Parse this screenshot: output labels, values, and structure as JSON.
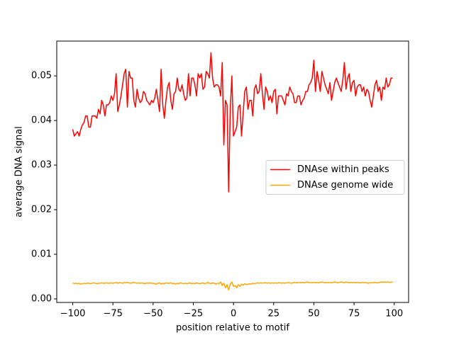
{
  "chart_data": {
    "type": "line",
    "xlabel": "position relative to motif",
    "ylabel": "average DNA signal",
    "x": [
      -100,
      -99,
      -98,
      -97,
      -96,
      -95,
      -94,
      -93,
      -92,
      -91,
      -90,
      -89,
      -88,
      -87,
      -86,
      -85,
      -84,
      -83,
      -82,
      -81,
      -80,
      -79,
      -78,
      -77,
      -76,
      -75,
      -74,
      -73,
      -72,
      -71,
      -70,
      -69,
      -68,
      -67,
      -66,
      -65,
      -64,
      -63,
      -62,
      -61,
      -60,
      -59,
      -58,
      -57,
      -56,
      -55,
      -54,
      -53,
      -52,
      -51,
      -50,
      -49,
      -48,
      -47,
      -46,
      -45,
      -44,
      -43,
      -42,
      -41,
      -40,
      -39,
      -38,
      -37,
      -36,
      -35,
      -34,
      -33,
      -32,
      -31,
      -30,
      -29,
      -28,
      -27,
      -26,
      -25,
      -24,
      -23,
      -22,
      -21,
      -20,
      -19,
      -18,
      -17,
      -16,
      -15,
      -14,
      -13,
      -12,
      -11,
      -10,
      -9,
      -8,
      -7,
      -6,
      -5,
      -4,
      -3,
      -2,
      -1,
      0,
      1,
      2,
      3,
      4,
      5,
      6,
      7,
      8,
      9,
      10,
      11,
      12,
      13,
      14,
      15,
      16,
      17,
      18,
      19,
      20,
      21,
      22,
      23,
      24,
      25,
      26,
      27,
      28,
      29,
      30,
      31,
      32,
      33,
      34,
      35,
      36,
      37,
      38,
      39,
      40,
      41,
      42,
      43,
      44,
      45,
      46,
      47,
      48,
      49,
      50,
      51,
      52,
      53,
      54,
      55,
      56,
      57,
      58,
      59,
      60,
      61,
      62,
      63,
      64,
      65,
      66,
      67,
      68,
      69,
      70,
      71,
      72,
      73,
      74,
      75,
      76,
      77,
      78,
      79,
      80,
      81,
      82,
      83,
      84,
      85,
      86,
      87,
      88,
      89,
      90,
      91,
      92,
      93,
      94,
      95,
      96,
      97,
      98,
      99
    ],
    "series": [
      {
        "name": "DNAse within peaks",
        "color": "#ff0000",
        "values": [
          0.038,
          0.0365,
          0.037,
          0.0375,
          0.0365,
          0.038,
          0.039,
          0.0395,
          0.041,
          0.041,
          0.0385,
          0.0385,
          0.041,
          0.041,
          0.041,
          0.0405,
          0.0425,
          0.0415,
          0.0445,
          0.0435,
          0.041,
          0.0435,
          0.0435,
          0.044,
          0.0455,
          0.0445,
          0.046,
          0.0505,
          0.042,
          0.0435,
          0.0455,
          0.048,
          0.0505,
          0.0515,
          0.043,
          0.051,
          0.0495,
          0.0495,
          0.0445,
          0.043,
          0.047,
          0.045,
          0.044,
          0.0445,
          0.0465,
          0.046,
          0.0445,
          0.044,
          0.0435,
          0.0445,
          0.044,
          0.045,
          0.047,
          0.0445,
          0.042,
          0.0515,
          0.0435,
          0.0405,
          0.0445,
          0.0475,
          0.0485,
          0.0445,
          0.0425,
          0.046,
          0.0465,
          0.0495,
          0.047,
          0.0465,
          0.048,
          0.046,
          0.0445,
          0.045,
          0.0505,
          0.0455,
          0.0495,
          0.0495,
          0.048,
          0.0455,
          0.0505,
          0.0495,
          0.0505,
          0.047,
          0.0475,
          0.051,
          0.0505,
          0.0495,
          0.0552,
          0.0495,
          0.0475,
          0.048,
          0.048,
          0.0475,
          0.0455,
          0.053,
          0.0345,
          0.0445,
          0.0435,
          0.024,
          0.0425,
          0.05,
          0.0365,
          0.0375,
          0.0385,
          0.043,
          0.0435,
          0.0365,
          0.0415,
          0.0465,
          0.0475,
          0.0425,
          0.0445,
          0.0445,
          0.041,
          0.047,
          0.048,
          0.046,
          0.0465,
          0.0505,
          0.046,
          0.0425,
          0.0475,
          0.0465,
          0.0445,
          0.0455,
          0.044,
          0.0465,
          0.047,
          0.0415,
          0.0455,
          0.0455,
          0.0455,
          0.0445,
          0.0435,
          0.046,
          0.0455,
          0.0475,
          0.0465,
          0.046,
          0.044,
          0.044,
          0.0455,
          0.0455,
          0.0435,
          0.0445,
          0.045,
          0.0465,
          0.0465,
          0.048,
          0.0485,
          0.0495,
          0.0535,
          0.0465,
          0.051,
          0.049,
          0.0465,
          0.051,
          0.0495,
          0.048,
          0.047,
          0.046,
          0.0485,
          0.0445,
          0.0465,
          0.0485,
          0.0495,
          0.0485,
          0.0475,
          0.0465,
          0.049,
          0.053,
          0.047,
          0.0495,
          0.0505,
          0.0465,
          0.0485,
          0.049,
          0.0455,
          0.0475,
          0.048,
          0.048,
          0.0465,
          0.0475,
          0.0455,
          0.047,
          0.0465,
          0.0445,
          0.043,
          0.0455,
          0.048,
          0.049,
          0.0465,
          0.0475,
          0.0445,
          0.0475,
          0.047,
          0.0495,
          0.0475,
          0.048,
          0.0495,
          0.0495
        ]
      },
      {
        "name": "DNAse genome wide",
        "color": "#ffa500",
        "values": [
          0.0036,
          0.0034,
          0.0035,
          0.0034,
          0.0035,
          0.0033,
          0.0034,
          0.0035,
          0.0034,
          0.0035,
          0.0035,
          0.0034,
          0.0035,
          0.0036,
          0.0035,
          0.0034,
          0.0035,
          0.0035,
          0.0036,
          0.0035,
          0.0035,
          0.0036,
          0.0035,
          0.0035,
          0.0036,
          0.0035,
          0.0036,
          0.0037,
          0.0035,
          0.0036,
          0.0036,
          0.0035,
          0.0037,
          0.0036,
          0.0037,
          0.0036,
          0.0035,
          0.0036,
          0.0037,
          0.0036,
          0.0035,
          0.0036,
          0.0035,
          0.0036,
          0.0035,
          0.0034,
          0.0036,
          0.0035,
          0.0036,
          0.0035,
          0.0035,
          0.0034,
          0.0033,
          0.0035,
          0.0036,
          0.0033,
          0.0035,
          0.0034,
          0.0036,
          0.0035,
          0.0035,
          0.0036,
          0.0034,
          0.0035,
          0.0033,
          0.0035,
          0.0034,
          0.0036,
          0.0035,
          0.0034,
          0.0035,
          0.0034,
          0.0035,
          0.0036,
          0.0034,
          0.0035,
          0.0034,
          0.0036,
          0.0035,
          0.0034,
          0.0035,
          0.0036,
          0.0034,
          0.0035,
          0.0037,
          0.0035,
          0.0034,
          0.0036,
          0.0035,
          0.0033,
          0.0035,
          0.0034,
          0.0038,
          0.003,
          0.0035,
          0.0025,
          0.0032,
          0.002,
          0.0033,
          0.0038,
          0.0028,
          0.003,
          0.0025,
          0.0032,
          0.0028,
          0.0033,
          0.0031,
          0.0034,
          0.0032,
          0.0033,
          0.0034,
          0.0033,
          0.0035,
          0.0034,
          0.0035,
          0.0036,
          0.0035,
          0.0036,
          0.0035,
          0.0036,
          0.0036,
          0.0035,
          0.0036,
          0.0035,
          0.0036,
          0.0035,
          0.0036,
          0.0035,
          0.0036,
          0.0036,
          0.0035,
          0.0036,
          0.0035,
          0.0036,
          0.0037,
          0.0036,
          0.0035,
          0.0036,
          0.0037,
          0.0036,
          0.0036,
          0.0037,
          0.0036,
          0.0037,
          0.0036,
          0.0037,
          0.0038,
          0.0036,
          0.0037,
          0.0036,
          0.0037,
          0.0036,
          0.0037,
          0.0036,
          0.0037,
          0.0038,
          0.0037,
          0.0036,
          0.0037,
          0.0036,
          0.0037,
          0.0036,
          0.0037,
          0.0038,
          0.0037,
          0.0036,
          0.0037,
          0.0038,
          0.0037,
          0.0036,
          0.0038,
          0.0037,
          0.0036,
          0.0037,
          0.0036,
          0.0037,
          0.0036,
          0.0037,
          0.0036,
          0.0036,
          0.0037,
          0.0036,
          0.0037,
          0.0036,
          0.0035,
          0.0036,
          0.0037,
          0.0036,
          0.0037,
          0.0036,
          0.0036,
          0.0037,
          0.0038,
          0.0037,
          0.0038,
          0.0037,
          0.0038,
          0.0037,
          0.0037,
          0.0038
        ]
      }
    ],
    "xlim": [
      -109.95,
      108.95
    ],
    "xticks": [
      {
        "value": -100,
        "label": "−100"
      },
      {
        "value": -75,
        "label": "−75"
      },
      {
        "value": -50,
        "label": "−50"
      },
      {
        "value": -25,
        "label": "−25"
      },
      0,
      25,
      50,
      75,
      100
    ],
    "ylim": [
      -0.0008,
      0.0578
    ],
    "yticks": [
      {
        "value": 0,
        "label": "0.00"
      },
      {
        "value": 0.01,
        "label": "0.01"
      },
      {
        "value": 0.02,
        "label": "0.02"
      },
      {
        "value": 0.03,
        "label": "0.03"
      },
      {
        "value": 0.04,
        "label": "0.04"
      },
      {
        "value": 0.05,
        "label": "0.05"
      }
    ],
    "legend": "center right",
    "grid": false
  }
}
